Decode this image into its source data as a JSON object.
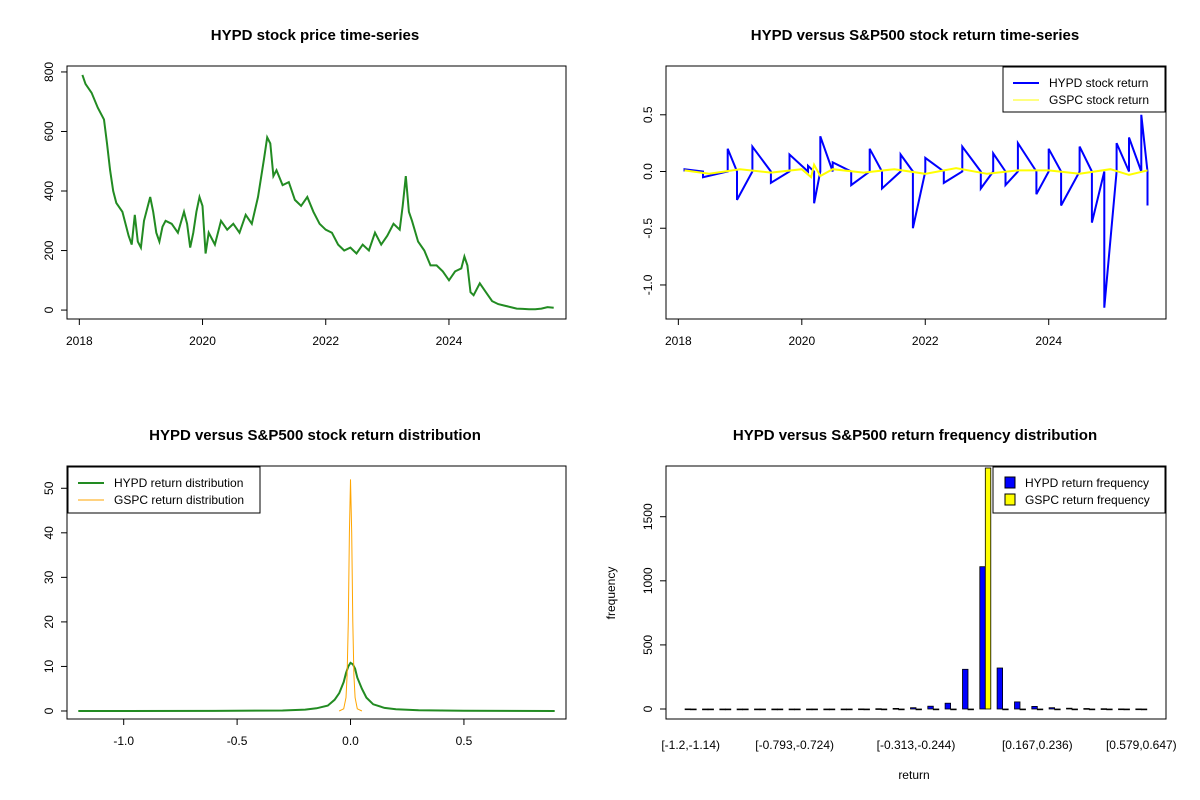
{
  "colors": {
    "price_line": "#228B22",
    "hypd_return": "#0000FF",
    "gspc_return": "#FFFF00",
    "hypd_density": "#228B22",
    "gspc_density": "#FFA500",
    "hypd_hist": "#0000FF",
    "gspc_hist": "#FFFF00"
  },
  "chart_data": [
    {
      "type": "line",
      "title": "HYPD stock price time-series",
      "xlabel": "",
      "ylabel": "",
      "x_ticks": [
        2018,
        2020,
        2022,
        2024
      ],
      "x_tick_labels": [
        "2018",
        "2020",
        "2022",
        "2024"
      ],
      "y_ticks": [
        0,
        200,
        400,
        600,
        800
      ],
      "y_tick_labels": [
        "0",
        "200",
        "400",
        "600",
        "800"
      ],
      "xlim": [
        2017.8,
        2025.9
      ],
      "ylim": [
        -30,
        820
      ],
      "series": [
        {
          "name": "HYPD price",
          "x": [
            2018.05,
            2018.1,
            2018.2,
            2018.3,
            2018.4,
            2018.45,
            2018.5,
            2018.55,
            2018.6,
            2018.7,
            2018.75,
            2018.8,
            2018.85,
            2018.9,
            2018.95,
            2019.0,
            2019.05,
            2019.1,
            2019.15,
            2019.2,
            2019.25,
            2019.3,
            2019.35,
            2019.4,
            2019.5,
            2019.6,
            2019.7,
            2019.75,
            2019.8,
            2019.85,
            2019.9,
            2019.95,
            2020.0,
            2020.05,
            2020.1,
            2020.15,
            2020.2,
            2020.3,
            2020.4,
            2020.5,
            2020.6,
            2020.7,
            2020.8,
            2020.9,
            2021.0,
            2021.05,
            2021.1,
            2021.15,
            2021.2,
            2021.3,
            2021.4,
            2021.5,
            2021.55,
            2021.6,
            2021.7,
            2021.8,
            2021.9,
            2022.0,
            2022.1,
            2022.2,
            2022.3,
            2022.4,
            2022.5,
            2022.6,
            2022.7,
            2022.8,
            2022.9,
            2023.0,
            2023.1,
            2023.2,
            2023.25,
            2023.3,
            2023.35,
            2023.4,
            2023.5,
            2023.6,
            2023.7,
            2023.8,
            2023.9,
            2024.0,
            2024.1,
            2024.2,
            2024.25,
            2024.3,
            2024.35,
            2024.4,
            2024.5,
            2024.6,
            2024.7,
            2024.8,
            2024.9,
            2025.0,
            2025.1,
            2025.2,
            2025.3,
            2025.4,
            2025.5,
            2025.6,
            2025.7
          ],
          "values": [
            790,
            760,
            730,
            680,
            640,
            560,
            470,
            400,
            360,
            330,
            290,
            250,
            220,
            320,
            230,
            210,
            300,
            340,
            380,
            330,
            260,
            230,
            280,
            300,
            290,
            260,
            330,
            290,
            210,
            260,
            330,
            380,
            350,
            190,
            260,
            240,
            220,
            300,
            270,
            290,
            260,
            320,
            290,
            380,
            510,
            580,
            560,
            450,
            470,
            420,
            430,
            370,
            360,
            350,
            380,
            330,
            290,
            270,
            260,
            220,
            200,
            210,
            190,
            220,
            200,
            260,
            220,
            250,
            290,
            270,
            350,
            450,
            330,
            300,
            230,
            200,
            150,
            150,
            130,
            100,
            130,
            140,
            180,
            150,
            60,
            50,
            90,
            60,
            30,
            20,
            15,
            10,
            5,
            4,
            3,
            3,
            5,
            10,
            8
          ]
        }
      ]
    },
    {
      "type": "line",
      "title": "HYPD versus S&P500 stock return time-series",
      "xlabel": "",
      "ylabel": "",
      "x_ticks": [
        2018,
        2020,
        2022,
        2024
      ],
      "x_tick_labels": [
        "2018",
        "2020",
        "2022",
        "2024"
      ],
      "y_ticks": [
        -1.0,
        -0.5,
        0.0,
        0.5
      ],
      "y_tick_labels": [
        "-1.0",
        "-0.5",
        "0.0",
        "0.5"
      ],
      "xlim": [
        2017.8,
        2025.9
      ],
      "ylim": [
        -1.3,
        0.93
      ],
      "legend": [
        "HYPD stock return",
        "GSPC stock return"
      ],
      "legend_position": "top-right",
      "series": [
        {
          "name": "HYPD stock return",
          "x": [
            2018.1,
            2018.4,
            2018.8,
            2018.95,
            2019.2,
            2019.5,
            2019.8,
            2020.1,
            2020.2,
            2020.3,
            2020.5,
            2020.8,
            2021.1,
            2021.3,
            2021.6,
            2021.8,
            2022.0,
            2022.3,
            2022.6,
            2022.9,
            2023.1,
            2023.3,
            2023.5,
            2023.8,
            2024.0,
            2024.2,
            2024.5,
            2024.7,
            2024.9,
            2025.1,
            2025.3,
            2025.5,
            2025.6
          ],
          "values": [
            0.02,
            -0.05,
            0.2,
            -0.25,
            0.22,
            -0.1,
            0.15,
            0.05,
            -0.28,
            0.31,
            0.08,
            -0.12,
            0.2,
            -0.15,
            0.15,
            -0.5,
            0.12,
            -0.1,
            0.22,
            -0.15,
            0.16,
            -0.12,
            0.25,
            -0.2,
            0.2,
            -0.3,
            0.22,
            -0.45,
            -1.2,
            0.25,
            0.3,
            0.5,
            -0.3
          ]
        },
        {
          "name": "GSPC stock return",
          "x": [
            2018.1,
            2018.5,
            2019.0,
            2019.5,
            2020.0,
            2020.15,
            2020.2,
            2020.3,
            2020.5,
            2021.0,
            2021.5,
            2022.0,
            2022.5,
            2023.0,
            2023.5,
            2024.0,
            2024.5,
            2025.0,
            2025.3,
            2025.6
          ],
          "values": [
            0.01,
            -0.02,
            0.02,
            -0.01,
            0.02,
            -0.05,
            0.06,
            -0.04,
            0.02,
            -0.01,
            0.02,
            -0.02,
            0.03,
            -0.02,
            0.01,
            0.01,
            -0.02,
            0.02,
            -0.03,
            0.01
          ]
        }
      ]
    },
    {
      "type": "line",
      "title": "HYPD versus S&P500 stock return distribution",
      "xlabel": "",
      "ylabel": "",
      "x_ticks": [
        -1.0,
        -0.5,
        0.0,
        0.5
      ],
      "x_tick_labels": [
        "-1.0",
        "-0.5",
        "0.0",
        "0.5"
      ],
      "y_ticks": [
        0,
        10,
        20,
        30,
        40,
        50
      ],
      "y_tick_labels": [
        "0",
        "10",
        "20",
        "30",
        "40",
        "50"
      ],
      "xlim": [
        -1.25,
        0.95
      ],
      "ylim": [
        -1.8,
        55
      ],
      "legend": [
        "HYPD return distribution",
        "GSPC return distribution"
      ],
      "legend_position": "top-left",
      "series": [
        {
          "name": "HYPD return distribution",
          "x": [
            -1.2,
            -0.6,
            -0.3,
            -0.2,
            -0.15,
            -0.1,
            -0.07,
            -0.05,
            -0.03,
            -0.02,
            -0.01,
            0.0,
            0.01,
            0.02,
            0.03,
            0.05,
            0.07,
            0.1,
            0.15,
            0.2,
            0.3,
            0.5,
            0.9
          ],
          "values": [
            0,
            0.02,
            0.1,
            0.3,
            0.6,
            1.2,
            2.5,
            4,
            6.5,
            8.5,
            10,
            10.8,
            10.5,
            9.5,
            7.5,
            5,
            3,
            1.5,
            0.7,
            0.4,
            0.15,
            0.05,
            0
          ]
        },
        {
          "name": "GSPC return distribution",
          "x": [
            -0.05,
            -0.03,
            -0.02,
            -0.015,
            -0.01,
            -0.005,
            0.0,
            0.005,
            0.01,
            0.015,
            0.02,
            0.03,
            0.05
          ],
          "values": [
            0,
            0.5,
            3,
            8,
            20,
            40,
            52,
            40,
            20,
            8,
            3,
            0.5,
            0
          ]
        }
      ]
    },
    {
      "type": "bar",
      "title": "HYPD versus S&P500 return frequency distribution",
      "xlabel": "return",
      "ylabel": "frequency",
      "category_tick_labels": [
        "[-1.2,-1.14)",
        "[-0.793,-0.724)",
        "[-0.313,-0.244)",
        "[0.167,0.236)",
        "[0.579,0.647)"
      ],
      "y_ticks": [
        0,
        500,
        1000,
        1500
      ],
      "y_tick_labels": [
        "0",
        "500",
        "1000",
        "1500"
      ],
      "ylim": [
        0,
        1880
      ],
      "legend": [
        "HYPD return frequency",
        "GSPC return frequency"
      ],
      "legend_position": "top-right",
      "bin_count": 27,
      "series": [
        {
          "name": "HYPD return frequency",
          "values": [
            1,
            0,
            0,
            0,
            0,
            0,
            0,
            0,
            0,
            0,
            1,
            2,
            5,
            10,
            22,
            45,
            310,
            1110,
            320,
            55,
            20,
            10,
            6,
            4,
            2,
            1,
            1
          ]
        },
        {
          "name": "GSPC return frequency",
          "values": [
            0,
            0,
            0,
            0,
            0,
            0,
            0,
            0,
            0,
            0,
            0,
            0,
            0,
            0,
            0,
            0,
            0,
            1900,
            0,
            0,
            0,
            0,
            0,
            0,
            0,
            0,
            0
          ]
        }
      ]
    }
  ]
}
